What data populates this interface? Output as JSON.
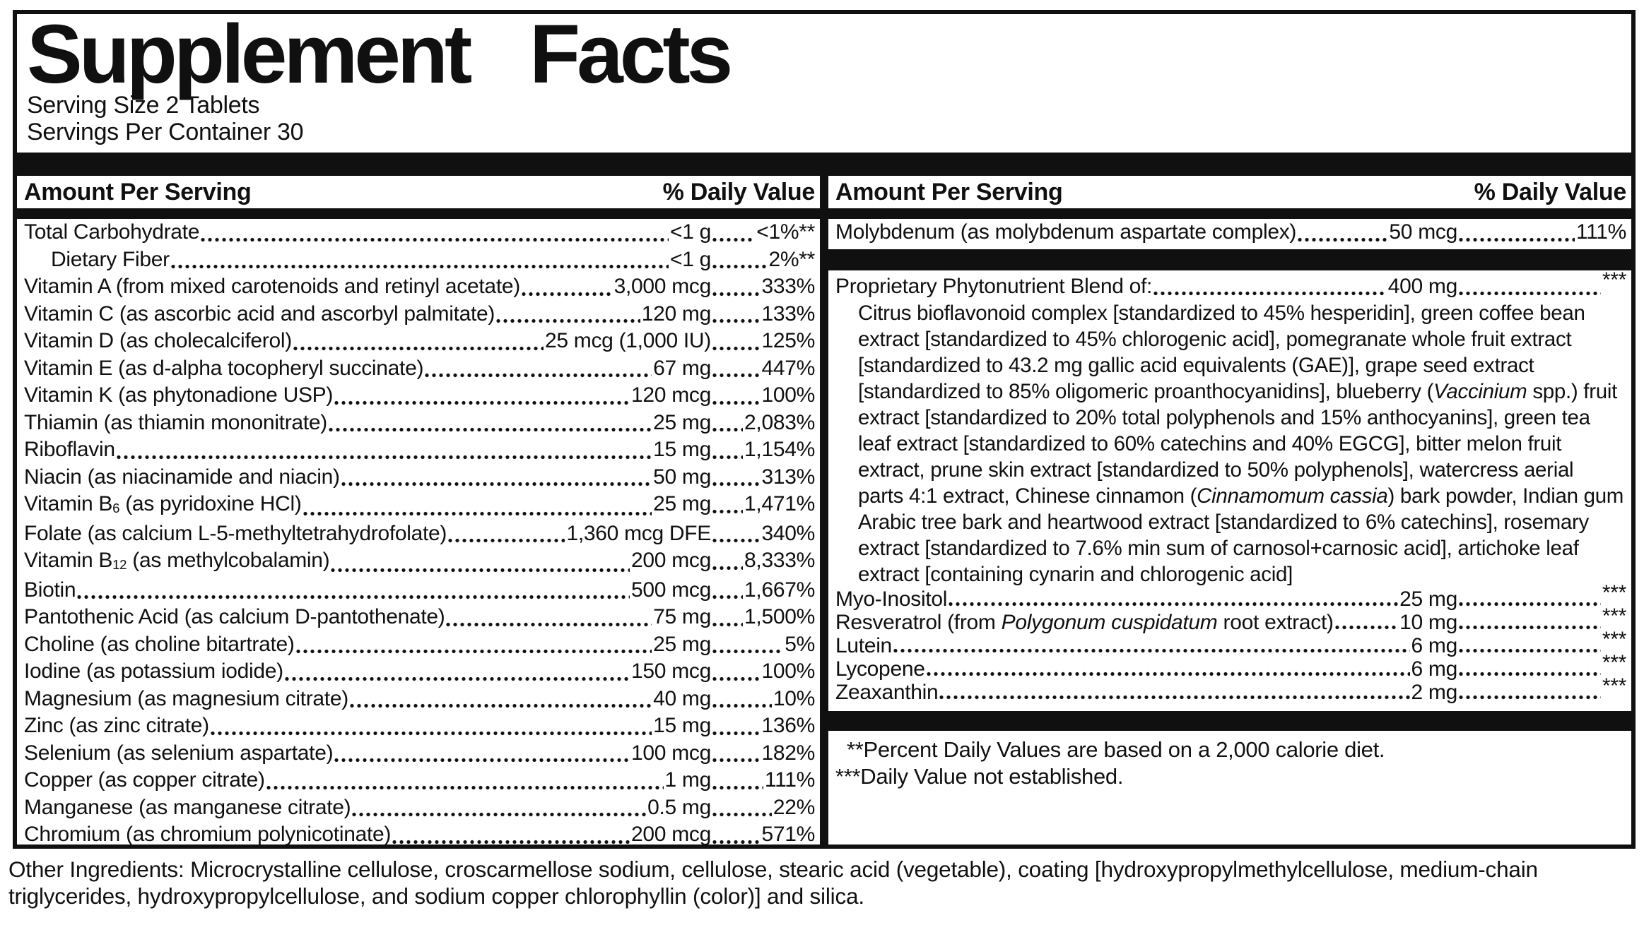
{
  "title": "Supplement Facts",
  "serving": {
    "size": "Serving Size 2 Tablets",
    "per_container": "Servings Per Container 30"
  },
  "column_header": {
    "amount": "Amount Per Serving",
    "daily_value": "% Daily Value"
  },
  "left_rows": [
    {
      "label": "Total Carbohydrate",
      "amount": "<1 g",
      "dv": "<1%**"
    },
    {
      "label": "Dietary Fiber",
      "amount": "<1 g",
      "dv": "2%**",
      "indent": true
    },
    {
      "label": "Vitamin A (from mixed carotenoids and retinyl acetate)",
      "amount": "3,000 mcg",
      "dv": "333%"
    },
    {
      "label": "Vitamin C (as ascorbic acid and ascorbyl palmitate)",
      "amount": "120 mg",
      "dv": "133%"
    },
    {
      "label": "Vitamin D (as cholecalciferol)",
      "amount": "25 mcg (1,000 IU)",
      "dv": "125%"
    },
    {
      "label": "Vitamin E (as d-alpha tocopheryl succinate)",
      "amount": "67 mg",
      "dv": "447%"
    },
    {
      "label": "Vitamin K (as phytonadione USP)",
      "amount": "120 mcg",
      "dv": "100%"
    },
    {
      "label": "Thiamin (as thiamin mononitrate)",
      "amount": "25 mg",
      "dv": "2,083%"
    },
    {
      "label": "Riboflavin",
      "amount": "15 mg",
      "dv": "1,154%"
    },
    {
      "label": "Niacin (as niacinamide and niacin)",
      "amount": "50 mg",
      "dv": "313%"
    },
    {
      "label_segments": [
        {
          "text": "Vitamin B"
        },
        {
          "text": "6",
          "style": "sub"
        },
        {
          "text": " (as pyridoxine HCl)"
        }
      ],
      "amount": "25 mg",
      "dv": "1,471%"
    },
    {
      "label": "Folate (as calcium L-5-methyltetrahydrofolate)",
      "amount": "1,360 mcg DFE",
      "dv": "340%"
    },
    {
      "label_segments": [
        {
          "text": "Vitamin B"
        },
        {
          "text": "12",
          "style": "sub"
        },
        {
          "text": " (as methylcobalamin)"
        }
      ],
      "amount": "200 mcg",
      "dv": "8,333%"
    },
    {
      "label": "Biotin",
      "amount": "500 mcg",
      "dv": "1,667%"
    },
    {
      "label": "Pantothenic Acid (as calcium D-pantothenate)",
      "amount": "75 mg",
      "dv": "1,500%"
    },
    {
      "label": "Choline (as choline bitartrate)",
      "amount": "25 mg",
      "dv": "5%"
    },
    {
      "label": "Iodine (as potassium iodide)",
      "amount": "150 mcg",
      "dv": "100%"
    },
    {
      "label": "Magnesium (as magnesium citrate)",
      "amount": "40 mg",
      "dv": "10%"
    },
    {
      "label": "Zinc (as zinc citrate)",
      "amount": "15 mg",
      "dv": "136%"
    },
    {
      "label": "Selenium (as selenium aspartate)",
      "amount": "100 mcg",
      "dv": "182%"
    },
    {
      "label": "Copper (as copper citrate)",
      "amount": "1 mg",
      "dv": "111%"
    },
    {
      "label": "Manganese (as manganese citrate)",
      "amount": "0.5 mg",
      "dv": "22%"
    },
    {
      "label": "Chromium (as chromium polynicotinate)",
      "amount": "200 mcg",
      "dv": "571%"
    }
  ],
  "right_rows_top": [
    {
      "label": "Molybdenum (as molybdenum aspartate complex)",
      "amount": "50 mcg",
      "dv": "111%"
    }
  ],
  "blend_row": [
    {
      "label": "Proprietary Phytonutrient Blend of:",
      "amount": "400 mg",
      "dv": "***"
    }
  ],
  "blend_description_segments": [
    {
      "text": "Citrus bioflavonoid complex [standardized to 45% hesperidin], green coffee bean extract [standardized to 45% chlorogenic acid], pomegranate whole fruit extract [standardized to 43.2 mg gallic acid equivalents (GAE)], grape seed extract [standardized to 85% oligomeric proanthocyanidins], blueberry ("
    },
    {
      "text": "Vaccinium",
      "style": "italic"
    },
    {
      "text": " spp.) fruit extract [standardized to 20% total polyphenols and 15% anthocyanins], green tea leaf extract [standardized to 60% catechins and 40% EGCG], bitter melon fruit extract, prune skin extract [standardized to 50% polyphenols], watercress aerial parts 4:1 extract, Chinese cinnamon ("
    },
    {
      "text": "Cinnamomum cassia",
      "style": "italic"
    },
    {
      "text": ") bark powder, Indian gum Arabic tree bark and heartwood extract [standardized to 6% catechins], rosemary extract [standardized to 7.6% min sum of carnosol+carnosic acid], artichoke leaf extract [containing cynarin and chlorogenic acid]"
    }
  ],
  "right_rows_bottom": [
    {
      "label": "Myo-Inositol",
      "amount": "25 mg",
      "dv": "***"
    },
    {
      "label_segments": [
        {
          "text": "Resveratrol (from "
        },
        {
          "text": "Polygonum cuspidatum",
          "style": "italic"
        },
        {
          "text": " root extract)"
        }
      ],
      "amount": "10 mg",
      "dv": "***"
    },
    {
      "label": "Lutein",
      "amount": "6 mg",
      "dv": "***"
    },
    {
      "label": "Lycopene",
      "amount": "6 mg",
      "dv": "***"
    },
    {
      "label": "Zeaxanthin",
      "amount": "2 mg",
      "dv": "***"
    }
  ],
  "footnotes": [
    "**Percent Daily Values are based on a 2,000 calorie diet.",
    "***Daily Value not established."
  ],
  "other_ingredients": "Other Ingredients: Microcrystalline cellulose, croscarmellose sodium, cellulose, stearic acid (vegetable), coating [hydroxypropylmethylcellulose, medium-chain triglycerides, hydroxypropylcellulose, and sodium copper chlorophyllin (color)] and silica."
}
